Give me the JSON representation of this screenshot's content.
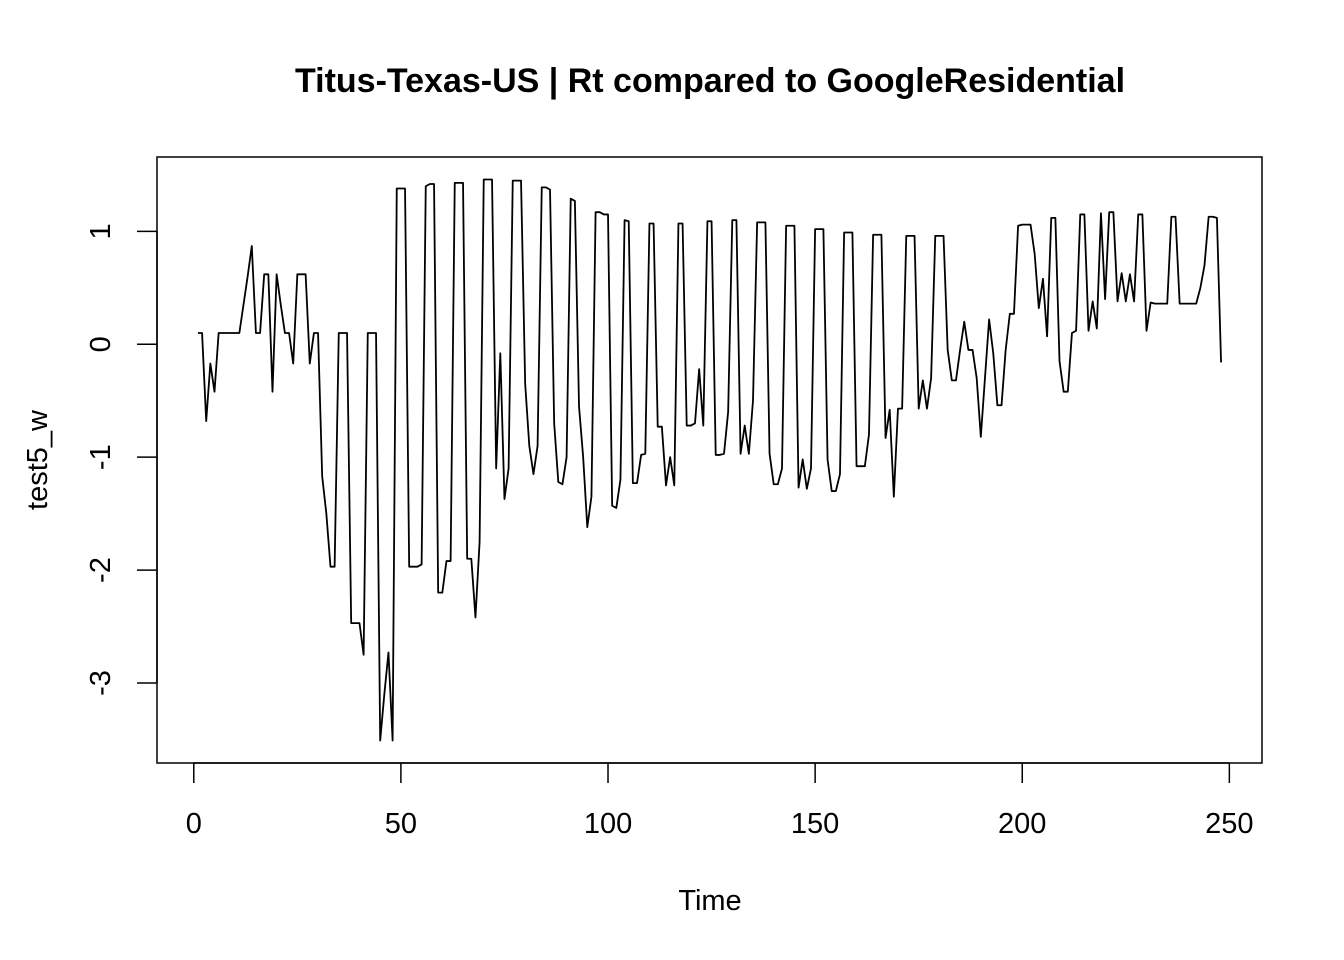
{
  "chart_data": {
    "type": "line",
    "title": "Titus-Texas-US | Rt compared to GoogleResidential",
    "xlabel": "Time",
    "ylabel": "test5_w",
    "x": [
      1,
      2,
      3,
      4,
      5,
      6,
      7,
      8,
      9,
      10,
      11,
      12,
      13,
      14,
      15,
      16,
      17,
      18,
      19,
      20,
      21,
      22,
      23,
      24,
      25,
      26,
      27,
      28,
      29,
      30,
      31,
      32,
      33,
      34,
      35,
      36,
      37,
      38,
      39,
      40,
      41,
      42,
      43,
      44,
      45,
      46,
      47,
      48,
      49,
      50,
      51,
      52,
      53,
      54,
      55,
      56,
      57,
      58,
      59,
      60,
      61,
      62,
      63,
      64,
      65,
      66,
      67,
      68,
      69,
      70,
      71,
      72,
      73,
      74,
      75,
      76,
      77,
      78,
      79,
      80,
      81,
      82,
      83,
      84,
      85,
      86,
      87,
      88,
      89,
      90,
      91,
      92,
      93,
      94,
      95,
      96,
      97,
      98,
      99,
      100,
      101,
      102,
      103,
      104,
      105,
      106,
      107,
      108,
      109,
      110,
      111,
      112,
      113,
      114,
      115,
      116,
      117,
      118,
      119,
      120,
      121,
      122,
      123,
      124,
      125,
      126,
      127,
      128,
      129,
      130,
      131,
      132,
      133,
      134,
      135,
      136,
      137,
      138,
      139,
      140,
      141,
      142,
      143,
      144,
      145,
      146,
      147,
      148,
      149,
      150,
      151,
      152,
      153,
      154,
      155,
      156,
      157,
      158,
      159,
      160,
      161,
      162,
      163,
      164,
      165,
      166,
      167,
      168,
      169,
      170,
      171,
      172,
      173,
      174,
      175,
      176,
      177,
      178,
      179,
      180,
      181,
      182,
      183,
      184,
      185,
      186,
      187,
      188,
      189,
      190,
      191,
      192,
      193,
      194,
      195,
      196,
      197,
      198,
      199,
      200,
      201,
      202,
      203,
      204,
      205,
      206,
      207,
      208,
      209,
      210,
      211,
      212,
      213,
      214,
      215,
      216,
      217,
      218,
      219,
      220,
      221,
      222,
      223,
      224,
      225,
      226,
      227,
      228,
      229,
      230,
      231,
      232,
      233,
      234,
      235,
      236,
      237,
      238,
      239,
      240,
      241,
      242,
      243,
      244,
      245,
      246,
      247,
      248
    ],
    "values": [
      0.1,
      0.1,
      -0.68,
      -0.17,
      -0.42,
      0.1,
      0.1,
      0.1,
      0.1,
      0.1,
      0.1,
      0.35,
      0.6,
      0.87,
      0.1,
      0.1,
      0.62,
      0.62,
      -0.42,
      0.62,
      0.35,
      0.1,
      0.1,
      -0.17,
      0.62,
      0.62,
      0.62,
      -0.17,
      0.1,
      0.1,
      -1.17,
      -1.5,
      -1.97,
      -1.97,
      0.1,
      0.1,
      0.1,
      -2.47,
      -2.47,
      -2.47,
      -2.75,
      0.1,
      0.1,
      0.1,
      -3.51,
      -3.1,
      -2.73,
      -3.51,
      1.38,
      1.38,
      1.38,
      -1.97,
      -1.97,
      -1.97,
      -1.95,
      1.4,
      1.42,
      1.42,
      -2.2,
      -2.2,
      -1.92,
      -1.92,
      1.43,
      1.43,
      1.43,
      -1.9,
      -1.9,
      -2.42,
      -1.75,
      1.46,
      1.46,
      1.46,
      -1.1,
      -0.08,
      -1.37,
      -1.1,
      1.45,
      1.45,
      1.45,
      -0.35,
      -0.9,
      -1.15,
      -0.9,
      1.39,
      1.39,
      1.37,
      -0.7,
      -1.22,
      -1.24,
      -1.0,
      1.29,
      1.27,
      -0.55,
      -1.0,
      -1.62,
      -1.35,
      1.17,
      1.17,
      1.15,
      1.15,
      -1.43,
      -1.45,
      -1.2,
      1.1,
      1.09,
      -1.23,
      -1.23,
      -0.98,
      -0.97,
      1.07,
      1.07,
      -0.73,
      -0.73,
      -1.25,
      -1.0,
      -1.25,
      1.07,
      1.07,
      -0.72,
      -0.72,
      -0.7,
      -0.22,
      -0.72,
      1.09,
      1.09,
      -0.98,
      -0.98,
      -0.97,
      -0.6,
      1.1,
      1.1,
      -0.97,
      -0.72,
      -0.97,
      -0.5,
      1.08,
      1.08,
      1.08,
      -0.97,
      -1.24,
      -1.24,
      -1.1,
      1.05,
      1.05,
      1.05,
      -1.27,
      -1.02,
      -1.28,
      -1.1,
      1.02,
      1.02,
      1.02,
      -1.02,
      -1.3,
      -1.3,
      -1.15,
      0.99,
      0.99,
      0.99,
      -1.08,
      -1.08,
      -1.08,
      -0.8,
      0.97,
      0.97,
      0.97,
      -0.83,
      -0.58,
      -1.35,
      -0.57,
      -0.57,
      0.96,
      0.96,
      0.96,
      -0.57,
      -0.32,
      -0.57,
      -0.3,
      0.96,
      0.96,
      0.96,
      -0.05,
      -0.32,
      -0.32,
      -0.05,
      0.2,
      -0.05,
      -0.05,
      -0.3,
      -0.82,
      -0.3,
      0.22,
      -0.08,
      -0.54,
      -0.54,
      -0.05,
      0.27,
      0.27,
      1.05,
      1.06,
      1.06,
      1.06,
      0.8,
      0.32,
      0.58,
      0.07,
      1.12,
      1.12,
      -0.15,
      -0.42,
      -0.42,
      0.1,
      0.12,
      1.15,
      1.15,
      0.12,
      0.38,
      0.14,
      1.16,
      0.4,
      1.17,
      1.17,
      0.38,
      0.63,
      0.38,
      0.62,
      0.38,
      1.15,
      1.15,
      0.12,
      0.37,
      0.36,
      0.36,
      0.36,
      0.36,
      1.13,
      1.13,
      0.36,
      0.36,
      0.36,
      0.36,
      0.36,
      0.5,
      0.7,
      1.13,
      1.13,
      1.12,
      -0.16
    ],
    "color": "#000000",
    "xlim": [
      -8.88,
      257.88
    ],
    "ylim": [
      -3.709,
      1.659
    ],
    "xticks": [
      0,
      50,
      100,
      150,
      200,
      250
    ],
    "yticks": [
      -3,
      -2,
      -1,
      0,
      1
    ]
  }
}
